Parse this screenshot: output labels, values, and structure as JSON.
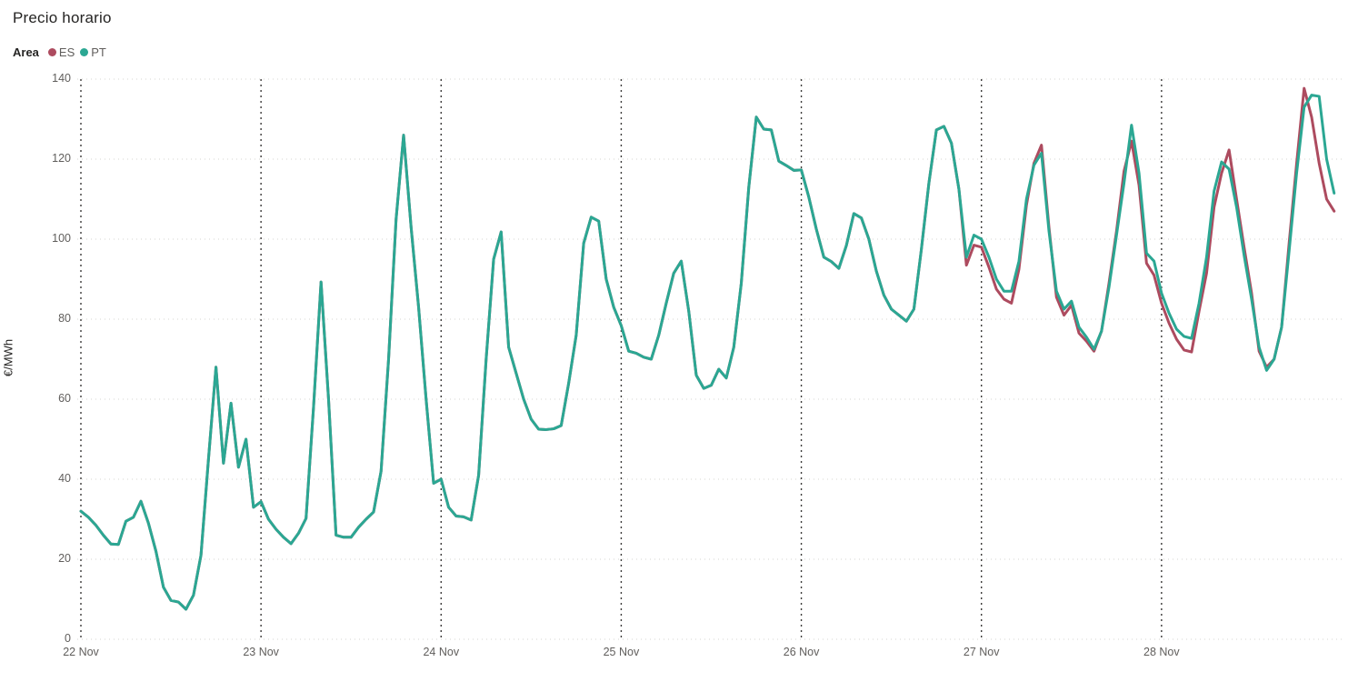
{
  "header": {
    "title": "Precio horario"
  },
  "legend": {
    "label": "Area",
    "series": [
      {
        "name": "ES",
        "color": "#ad4b5f"
      },
      {
        "name": "PT",
        "color": "#2ba793"
      }
    ]
  },
  "chart_data": {
    "type": "line",
    "title": "Precio horario",
    "xlabel": "",
    "ylabel": "€/MWh",
    "ylim": [
      0,
      140
    ],
    "yticks": [
      0,
      20,
      40,
      60,
      80,
      100,
      120,
      140
    ],
    "grid": {
      "vertical": "dotted-dark-at-day-boundaries",
      "horizontal": "dotted-light"
    },
    "legend_position": "top-left",
    "x_unit": "hour",
    "hours_per_day": 24,
    "days": [
      "22 Nov",
      "23 Nov",
      "24 Nov",
      "25 Nov",
      "26 Nov",
      "27 Nov",
      "28 Nov"
    ],
    "series": [
      {
        "name": "ES",
        "color": "#ad4b5f",
        "values": [
          32,
          30.5,
          28.5,
          26,
          23.8,
          23.7,
          29.5,
          30.5,
          34.5,
          29,
          22,
          13,
          9.7,
          9.3,
          7.5,
          11,
          21,
          45,
          68,
          44,
          59,
          43,
          50,
          33,
          34.4,
          30,
          27.5,
          25.5,
          23.9,
          26.5,
          30.2,
          58,
          89.3,
          60,
          26,
          25.5,
          25.5,
          28,
          30,
          31.8,
          42,
          70,
          105,
          126,
          103,
          83,
          60,
          39,
          40,
          33,
          30.8,
          30.6,
          29.8,
          41,
          70,
          95,
          101.8,
          73,
          66.5,
          60,
          55,
          52.5,
          52.4,
          52.6,
          53.4,
          64,
          76,
          99,
          105.5,
          104.5,
          90,
          83,
          78.4,
          72,
          71.5,
          70.5,
          70,
          76,
          84,
          91.5,
          94.5,
          82,
          66,
          62.7,
          63.5,
          67.5,
          65.3,
          73,
          89,
          113,
          130.5,
          127.5,
          127.3,
          119.5,
          118.4,
          117.2,
          117.3,
          110.5,
          102.5,
          95.5,
          94.4,
          92.7,
          98.4,
          106.4,
          105.3,
          100,
          92,
          86,
          82.5,
          81,
          79.5,
          82.5,
          97.5,
          114,
          127.3,
          128.2,
          124,
          112.5,
          93.5,
          98.5,
          98,
          93,
          87.5,
          85,
          84,
          92.5,
          108.5,
          119,
          123.5,
          103,
          85.5,
          81,
          83.5,
          76.5,
          74.5,
          72,
          77,
          89,
          102,
          117,
          124.5,
          113.5,
          94,
          91,
          84,
          79,
          75,
          72.3,
          71.8,
          82,
          91.5,
          108,
          116.5,
          122.3,
          110,
          98,
          86.5,
          72,
          68,
          70,
          78,
          99,
          118.9,
          137.7,
          130.5,
          119,
          110,
          107
        ]
      },
      {
        "name": "PT",
        "color": "#2ba793",
        "values": [
          32,
          30.5,
          28.5,
          26,
          23.8,
          23.7,
          29.5,
          30.5,
          34.5,
          29,
          22,
          13,
          9.7,
          9.3,
          7.5,
          11,
          21,
          45,
          68,
          44,
          59,
          43,
          50,
          33,
          34.4,
          30,
          27.5,
          25.5,
          23.9,
          26.5,
          30.2,
          58,
          89.3,
          60,
          26,
          25.5,
          25.5,
          28,
          30,
          31.8,
          42,
          70,
          105,
          126,
          103,
          83,
          60,
          39,
          40,
          33,
          30.8,
          30.6,
          29.8,
          41,
          70,
          95,
          101.8,
          73,
          66.5,
          60,
          55,
          52.5,
          52.4,
          52.6,
          53.4,
          64,
          76,
          99,
          105.5,
          104.5,
          90,
          83,
          78.4,
          72,
          71.5,
          70.5,
          70,
          76,
          84,
          91.5,
          94.5,
          82,
          66,
          62.7,
          63.5,
          67.5,
          65.3,
          73,
          89,
          113,
          130.5,
          127.5,
          127.3,
          119.5,
          118.4,
          117.2,
          117.3,
          110.5,
          102.5,
          95.5,
          94.4,
          92.7,
          98.4,
          106.4,
          105.3,
          100,
          92,
          86,
          82.5,
          81,
          79.5,
          82.5,
          97.5,
          114,
          127.3,
          128.2,
          124,
          112.5,
          95.5,
          101,
          100,
          95.5,
          90,
          87,
          87,
          94.5,
          110,
          118.5,
          121.5,
          102,
          87,
          82.5,
          84.5,
          78,
          75.5,
          72.5,
          77,
          88,
          101,
          114,
          128.5,
          116.5,
          96.5,
          94.5,
          86.5,
          81.5,
          77.5,
          75.7,
          75.2,
          84,
          95.5,
          112,
          119.3,
          117.5,
          108,
          96,
          85,
          73,
          67.2,
          70,
          78,
          97,
          116.5,
          133,
          136,
          135.7,
          120,
          111.5
        ]
      }
    ]
  }
}
